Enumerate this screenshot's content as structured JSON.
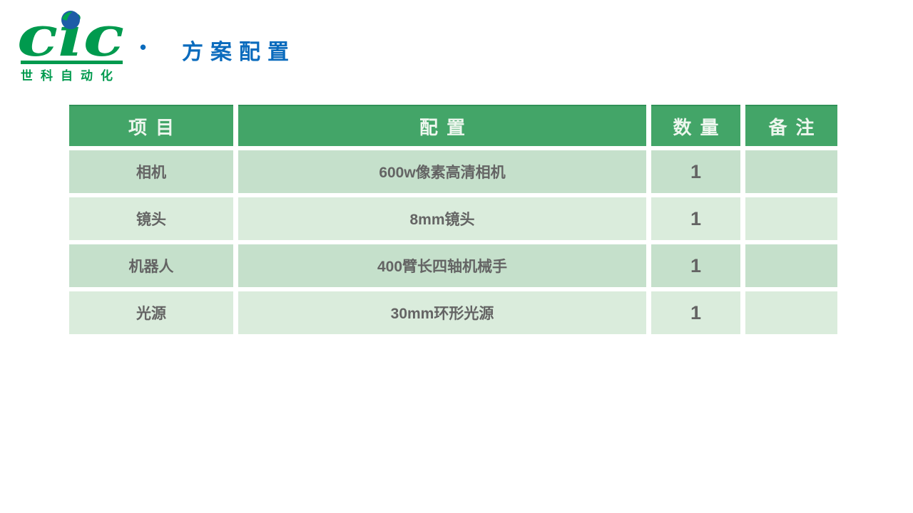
{
  "logo": {
    "wordmark": "cic",
    "subtitle": "世科自动化"
  },
  "header": {
    "bullet": "•",
    "title": "方案配置"
  },
  "table": {
    "columns": [
      "项目",
      "配置",
      "数量",
      "备注"
    ],
    "rows": [
      {
        "item": "相机",
        "config": "600w像素高清相机",
        "qty": "1",
        "note": ""
      },
      {
        "item": "镜头",
        "config": "8mm镜头",
        "qty": "1",
        "note": ""
      },
      {
        "item": "机器人",
        "config": "400臂长四轴机械手",
        "qty": "1",
        "note": ""
      },
      {
        "item": "光源",
        "config": "30mm环形光源",
        "qty": "1",
        "note": ""
      }
    ]
  },
  "colors": {
    "header_green": "#43A568",
    "row_dark": "#C5E0CB",
    "row_light": "#DAECDC",
    "text_gray": "#646464",
    "title_blue": "#0A6BBD",
    "logo_green": "#009A4E",
    "globe_blue": "#1E5CA7",
    "globe_swoosh_green": "#00A551"
  }
}
